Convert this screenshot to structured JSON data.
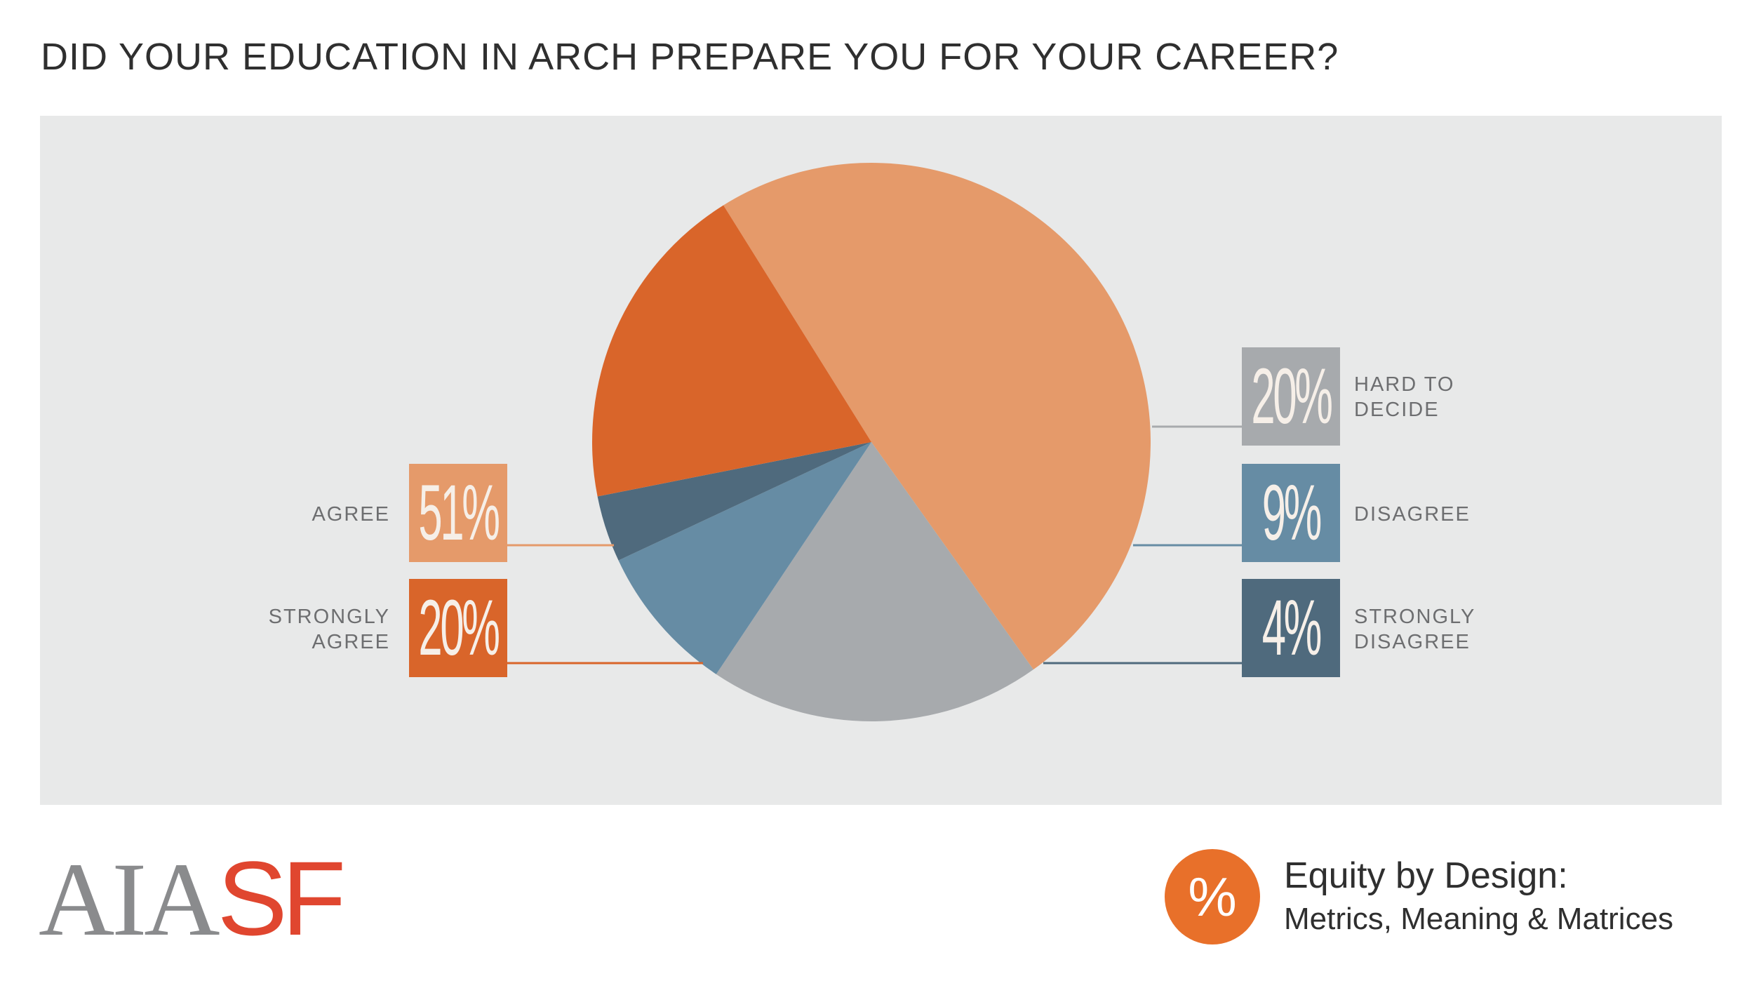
{
  "chart_data": {
    "type": "pie",
    "title": "DID YOUR EDUCATION IN ARCH PREPARE YOU FOR YOUR CAREER?",
    "slices": [
      {
        "name": "AGREE",
        "value": 51,
        "label": "51%",
        "color": "#e59a6a"
      },
      {
        "name": "HARD TO DECIDE",
        "value": 20,
        "label": "20%",
        "color": "#a7aaad"
      },
      {
        "name": "DISAGREE",
        "value": 9,
        "label": "9%",
        "color": "#668ca4"
      },
      {
        "name": "STRONGLY DISAGREE",
        "value": 4,
        "label": "4%",
        "color": "#4f6a7d"
      },
      {
        "name": "STRONGLY AGREE",
        "value": 20,
        "label": "20%",
        "color": "#d9652a"
      }
    ],
    "legend": [
      {
        "key": "agree",
        "lines": [
          "AGREE"
        ],
        "pct": "51%",
        "color": "#e59a6a",
        "side": "left"
      },
      {
        "key": "strongly_agree",
        "lines": [
          "STRONGLY",
          "AGREE"
        ],
        "pct": "20%",
        "color": "#d9652a",
        "side": "left"
      },
      {
        "key": "hard_to_decide",
        "lines": [
          "HARD TO",
          "DECIDE"
        ],
        "pct": "20%",
        "color": "#a7aaad",
        "side": "right"
      },
      {
        "key": "disagree",
        "lines": [
          "DISAGREE"
        ],
        "pct": "9%",
        "color": "#668ca4",
        "side": "right"
      },
      {
        "key": "strongly_disagree",
        "lines": [
          "STRONGLY",
          "DISAGREE"
        ],
        "pct": "4%",
        "color": "#4f6a7d",
        "side": "right"
      }
    ]
  },
  "footer": {
    "logo_left": "AIA",
    "logo_right": "SF",
    "badge_symbol": "%",
    "brand_title": "Equity by Design:",
    "brand_subtitle": "Metrics, Meaning & Matrices"
  },
  "colors": {
    "panel_bg": "#e8e9e9",
    "logo_gray": "#8a8b8d",
    "logo_red": "#e0462f",
    "badge_orange": "#e8702a"
  }
}
